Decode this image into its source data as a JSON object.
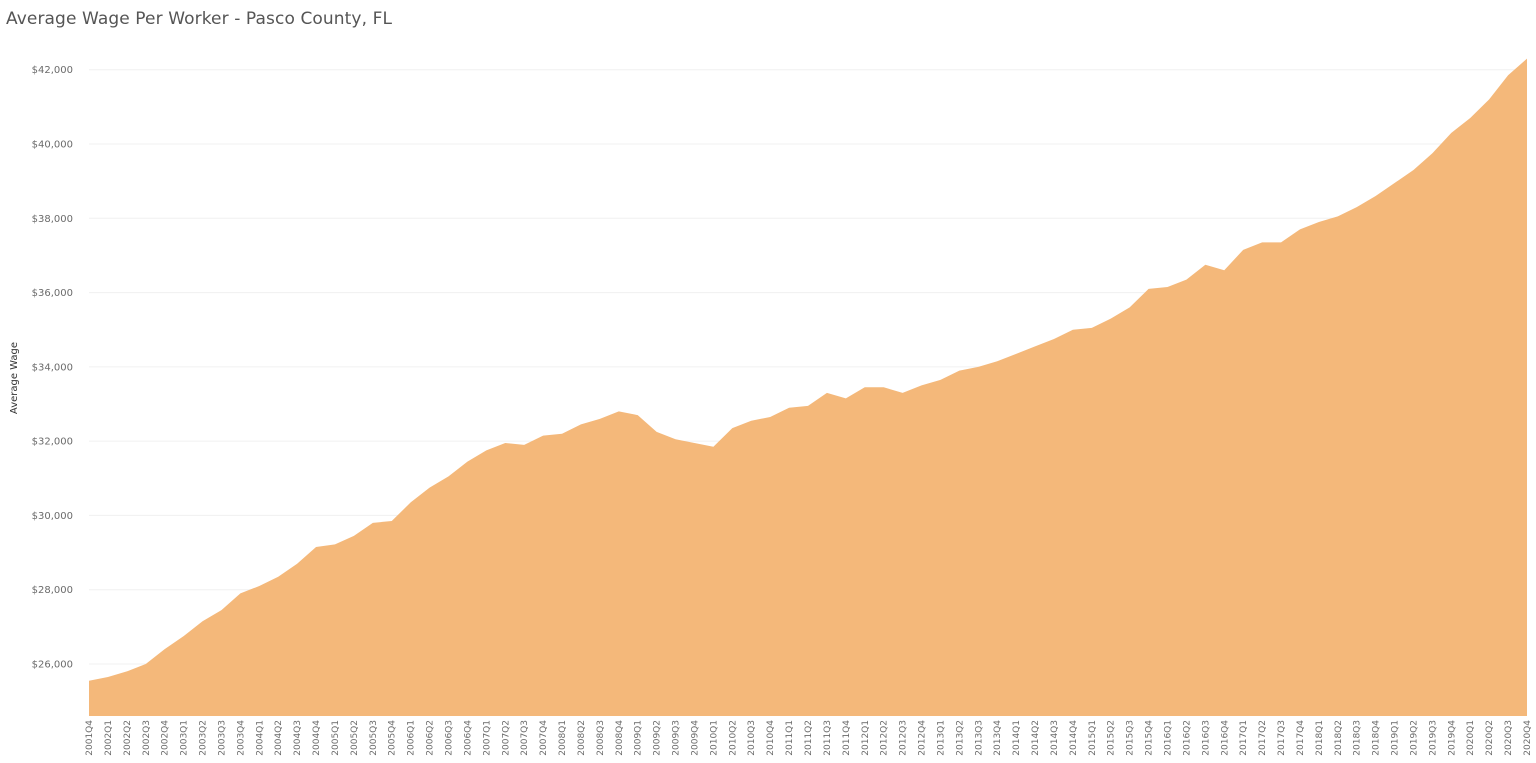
{
  "chart_data": {
    "type": "area",
    "title": "Average Wage Per Worker - Pasco County, FL",
    "ylabel": "Average Wage",
    "xlabel": "",
    "ylim": [
      24600,
      42800
    ],
    "yticks": [
      26000,
      28000,
      30000,
      32000,
      34000,
      36000,
      38000,
      40000,
      42000
    ],
    "ytick_labels": [
      "$26,000",
      "$28,000",
      "$30,000",
      "$32,000",
      "$34,000",
      "$36,000",
      "$38,000",
      "$40,000",
      "$42,000"
    ],
    "grid": true,
    "fill_color": "#F4B87A",
    "categories": [
      "2001Q4",
      "2002Q1",
      "2002Q2",
      "2002Q3",
      "2002Q4",
      "2003Q1",
      "2003Q2",
      "2003Q3",
      "2003Q4",
      "2004Q1",
      "2004Q2",
      "2004Q3",
      "2004Q4",
      "2005Q1",
      "2005Q2",
      "2005Q3",
      "2005Q4",
      "2006Q1",
      "2006Q2",
      "2006Q3",
      "2006Q4",
      "2007Q1",
      "2007Q2",
      "2007Q3",
      "2007Q4",
      "2008Q1",
      "2008Q2",
      "2008Q3",
      "2008Q4",
      "2009Q1",
      "2009Q2",
      "2009Q3",
      "2009Q4",
      "2010Q1",
      "2010Q2",
      "2010Q3",
      "2010Q4",
      "2011Q1",
      "2011Q2",
      "2011Q3",
      "2011Q4",
      "2012Q1",
      "2012Q2",
      "2012Q3",
      "2012Q4",
      "2013Q1",
      "2013Q2",
      "2013Q3",
      "2013Q4",
      "2014Q1",
      "2014Q2",
      "2014Q3",
      "2014Q4",
      "2015Q1",
      "2015Q2",
      "2015Q3",
      "2015Q4",
      "2016Q1",
      "2016Q2",
      "2016Q3",
      "2016Q4",
      "2017Q1",
      "2017Q2",
      "2017Q3",
      "2017Q4",
      "2018Q1",
      "2018Q2",
      "2018Q3",
      "2018Q4",
      "2019Q1",
      "2019Q2",
      "2019Q3",
      "2019Q4",
      "2020Q1",
      "2020Q2",
      "2020Q3",
      "2020Q4"
    ],
    "values": [
      25550,
      25650,
      25800,
      26000,
      26400,
      26750,
      27150,
      27450,
      27900,
      28100,
      28350,
      28700,
      29150,
      29220,
      29450,
      29800,
      29850,
      30350,
      30750,
      31050,
      31450,
      31750,
      31950,
      31900,
      32150,
      32200,
      32450,
      32600,
      32800,
      32700,
      32250,
      32050,
      31950,
      31850,
      32350,
      32550,
      32650,
      32900,
      32950,
      33300,
      33150,
      33450,
      33450,
      33300,
      33500,
      33650,
      33900,
      34000,
      34150,
      34350,
      34550,
      34750,
      35000,
      35050,
      35300,
      35600,
      36100,
      36150,
      36350,
      36750,
      36600,
      37150,
      37350,
      37350,
      37700,
      37900,
      38050,
      38300,
      38600,
      38950,
      39300,
      39750,
      40300,
      40700,
      41200,
      41850,
      42300
    ]
  }
}
